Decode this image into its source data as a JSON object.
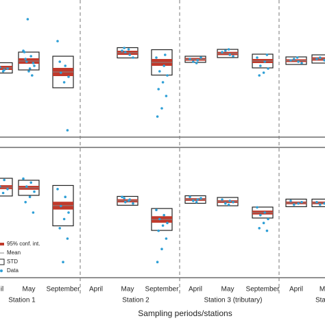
{
  "chart_data": [
    {
      "type": "box",
      "ylim": [
        0,
        100
      ],
      "box_color": "#222",
      "ci_color": "#c0392b",
      "mean_color": "#888",
      "point_color": "#2e9fd6",
      "mean": [
        50.5,
        55.5,
        47.5,
        null,
        61.5,
        54.5,
        56.75,
        61,
        55.5,
        55.75,
        57
      ],
      "std": [
        3.75,
        6.5,
        11.5,
        null,
        3.75,
        9.25,
        2.25,
        3,
        5,
        2.75,
        3
      ],
      "ci": [
        1.5,
        2,
        3,
        null,
        1.5,
        2.5,
        1,
        1.2,
        1.5,
        1,
        1.2
      ],
      "points": [
        [
          52,
          49,
          51,
          50,
          48
        ],
        [
          63,
          59,
          55,
          52,
          50,
          57,
          54,
          48,
          62,
          45,
          86
        ],
        [
          70,
          52,
          47,
          44,
          40,
          55,
          5
        ],
        [],
        [
          63,
          60,
          62,
          58,
          64,
          65
        ],
        [
          58,
          52,
          48,
          45,
          40,
          35,
          30,
          21,
          15,
          60
        ],
        [
          57,
          56,
          55,
          58,
          54
        ],
        [
          62,
          60,
          63,
          59,
          64
        ],
        [
          58,
          55,
          52,
          50,
          47,
          45,
          60
        ],
        [
          56,
          55,
          57,
          54,
          58
        ],
        [
          57,
          56,
          58,
          55
        ]
      ]
    },
    {
      "type": "box",
      "ylim": [
        0,
        100
      ],
      "box_color": "#222",
      "ci_color": "#c0392b",
      "mean_color": "#888",
      "point_color": "#2e9fd6",
      "mean": [
        69.5,
        69,
        55.3,
        null,
        59,
        44.7,
        60,
        58.4,
        50,
        57.4,
        57.4
      ],
      "std": [
        6.8,
        5.8,
        15.5,
        null,
        3.4,
        8.4,
        2.9,
        3.2,
        4.2,
        2.9,
        2.9
      ],
      "ci": [
        1.5,
        1.5,
        3,
        null,
        1.2,
        2.5,
        1,
        1,
        1.5,
        1,
        1
      ],
      "points": [
        [
          80,
          75,
          70,
          68,
          65,
          62
        ],
        [
          76,
          73,
          70,
          66,
          62,
          58,
          50
        ],
        [
          68,
          62,
          55,
          50,
          45,
          38,
          30,
          12
        ],
        [],
        [
          62,
          60,
          58,
          57,
          59,
          61
        ],
        [
          52,
          48,
          45,
          42,
          40,
          36,
          30,
          22,
          12
        ],
        [
          62,
          60,
          59,
          61,
          58
        ],
        [
          60,
          59,
          57,
          58,
          56
        ],
        [
          54,
          50,
          48,
          45,
          42,
          38,
          36
        ],
        [
          59,
          57,
          56,
          58
        ],
        [
          58,
          57,
          56,
          59
        ]
      ],
      "categories": [
        "il",
        "May",
        "September",
        "April",
        "May",
        "September",
        "April",
        "May",
        "September",
        "April",
        "M"
      ],
      "groups": [
        "Station 1",
        "Station 2",
        "Station 3 (tributary)",
        "Stati"
      ],
      "xlabel": "Sampling periods/stations",
      "legend": [
        "95% conf. int.",
        "Mean",
        "STD",
        "Data"
      ]
    }
  ]
}
